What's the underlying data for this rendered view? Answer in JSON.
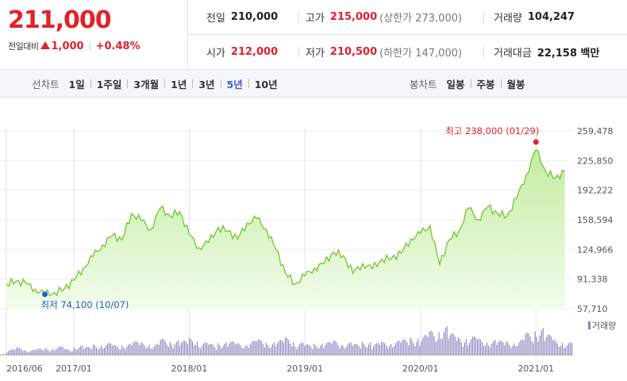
{
  "quote": {
    "price": "211,000",
    "change_label": "전일대비",
    "change": "1,000",
    "change_pct": "+0.48%",
    "row1": [
      {
        "key": "전일",
        "value": "210,000",
        "sub": "",
        "red": false
      },
      {
        "key": "고가",
        "value": "215,000",
        "sub": "(상한가 273,000)",
        "red": true
      },
      {
        "key": "거래량",
        "value": "104,247",
        "sub": "",
        "red": false
      }
    ],
    "row2": [
      {
        "key": "시가",
        "value": "212,000",
        "sub": "",
        "red": true
      },
      {
        "key": "저가",
        "value": "210,500",
        "sub": "(하한가 147,000)",
        "red": true
      },
      {
        "key": "거래대금",
        "value": "22,158 백만",
        "sub": "",
        "red": false
      }
    ]
  },
  "tabs": {
    "line_label": "선차트",
    "line_items": [
      "1일",
      "1주일",
      "3개월",
      "1년",
      "3년",
      "5년",
      "10년"
    ],
    "line_active": 5,
    "candle_label": "봉차트",
    "candle_items": [
      "일봉",
      "주봉",
      "월봉"
    ]
  },
  "colors": {
    "up": "#e0222b",
    "line": "#78c83a",
    "area_top": "#c3eca0",
    "area_bottom": "#f3fcec",
    "low": "#1e63c8",
    "volume": "#8a82bd",
    "active_tab": "#3f5fd6"
  },
  "chart_data": {
    "type": "area",
    "x_start": "2016/06",
    "ylim": [
      57710,
      259478
    ],
    "y_ticks": [
      "259,478",
      "225,850",
      "192,222",
      "158,594",
      "124,966",
      "91,338",
      "57,710"
    ],
    "x_ticks": [
      "2016/06",
      "2017/01",
      "2018/01",
      "2019/01",
      "2020/01",
      "2021/01"
    ],
    "high_label": "최고 238,000 (01/29)",
    "low_label": "최저 74,100 (10/07)",
    "volume_label": "거래량",
    "series": [
      {
        "x": "2016/06",
        "y": 86000
      },
      {
        "x": "2016/07",
        "y": 89000
      },
      {
        "x": "2016/08",
        "y": 86500
      },
      {
        "x": "2016/09",
        "y": 80000
      },
      {
        "x": "2016/10",
        "y": 74100
      },
      {
        "x": "2016/11",
        "y": 76000
      },
      {
        "x": "2016/12",
        "y": 80000
      },
      {
        "x": "2017/01",
        "y": 90000
      },
      {
        "x": "2017/02",
        "y": 104000
      },
      {
        "x": "2017/03",
        "y": 117000
      },
      {
        "x": "2017/04",
        "y": 130000
      },
      {
        "x": "2017/05",
        "y": 141000
      },
      {
        "x": "2017/06",
        "y": 136000
      },
      {
        "x": "2017/07",
        "y": 166000
      },
      {
        "x": "2017/08",
        "y": 158000
      },
      {
        "x": "2017/09",
        "y": 148000
      },
      {
        "x": "2017/10",
        "y": 172000
      },
      {
        "x": "2017/11",
        "y": 163000
      },
      {
        "x": "2017/12",
        "y": 168000
      },
      {
        "x": "2018/01",
        "y": 142000
      },
      {
        "x": "2018/02",
        "y": 127000
      },
      {
        "x": "2018/03",
        "y": 133000
      },
      {
        "x": "2018/04",
        "y": 150000
      },
      {
        "x": "2018/05",
        "y": 146000
      },
      {
        "x": "2018/06",
        "y": 137000
      },
      {
        "x": "2018/07",
        "y": 155000
      },
      {
        "x": "2018/08",
        "y": 160000
      },
      {
        "x": "2018/09",
        "y": 148000
      },
      {
        "x": "2018/10",
        "y": 125000
      },
      {
        "x": "2018/11",
        "y": 98000
      },
      {
        "x": "2018/12",
        "y": 86000
      },
      {
        "x": "2019/01",
        "y": 95000
      },
      {
        "x": "2019/02",
        "y": 104000
      },
      {
        "x": "2019/03",
        "y": 109000
      },
      {
        "x": "2019/04",
        "y": 122000
      },
      {
        "x": "2019/05",
        "y": 118000
      },
      {
        "x": "2019/06",
        "y": 98000
      },
      {
        "x": "2019/07",
        "y": 109000
      },
      {
        "x": "2019/08",
        "y": 103000
      },
      {
        "x": "2019/09",
        "y": 114000
      },
      {
        "x": "2019/10",
        "y": 115000
      },
      {
        "x": "2019/11",
        "y": 121000
      },
      {
        "x": "2019/12",
        "y": 137000
      },
      {
        "x": "2020/01",
        "y": 143000
      },
      {
        "x": "2020/02",
        "y": 152000
      },
      {
        "x": "2020/03",
        "y": 108000
      },
      {
        "x": "2020/04",
        "y": 136000
      },
      {
        "x": "2020/05",
        "y": 146000
      },
      {
        "x": "2020/06",
        "y": 172000
      },
      {
        "x": "2020/07",
        "y": 159000
      },
      {
        "x": "2020/08",
        "y": 173000
      },
      {
        "x": "2020/09",
        "y": 166000
      },
      {
        "x": "2020/10",
        "y": 163000
      },
      {
        "x": "2020/11",
        "y": 183000
      },
      {
        "x": "2020/12",
        "y": 210000
      },
      {
        "x": "2021/01",
        "y": 238000
      },
      {
        "x": "2021/02",
        "y": 214000
      },
      {
        "x": "2021/03",
        "y": 206000
      },
      {
        "x": "2021/04",
        "y": 213000
      }
    ],
    "volume": [
      18,
      24,
      16,
      20,
      22,
      28,
      19,
      30,
      26,
      34,
      38,
      32,
      36,
      44,
      40,
      34,
      52,
      48,
      46,
      55,
      40,
      36,
      42,
      44,
      38,
      46,
      50,
      42,
      48,
      56,
      40,
      34,
      38,
      42,
      46,
      40,
      36,
      44,
      38,
      42,
      46,
      50,
      58,
      64,
      78,
      92,
      70,
      58,
      60,
      52,
      48,
      46,
      44,
      50,
      72,
      88,
      66,
      48,
      40
    ]
  }
}
